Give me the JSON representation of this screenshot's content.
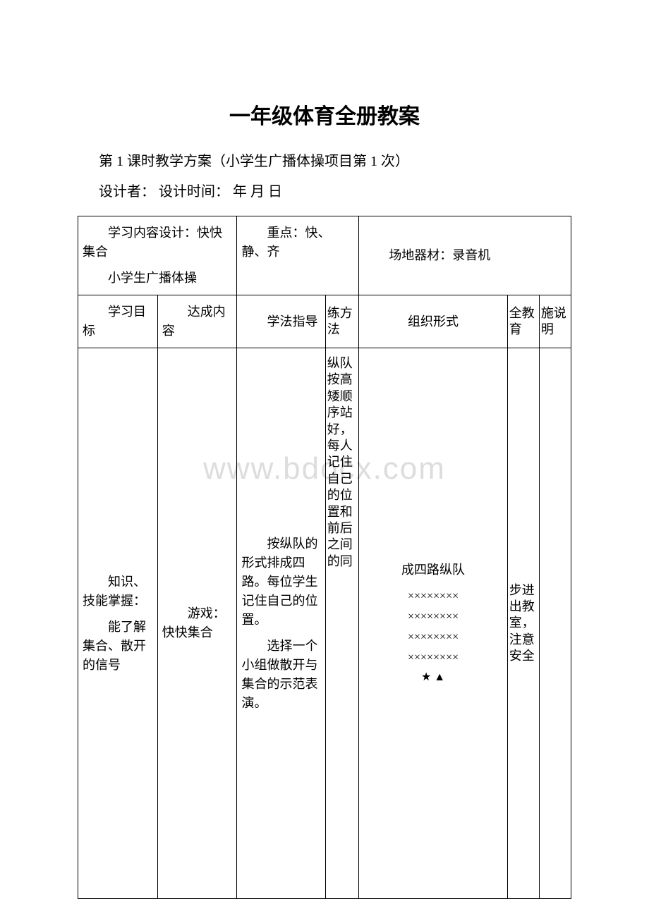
{
  "title": "一年级体育全册教案",
  "subtitle": "第 1 课时教学方案（小学生广播体操项目第 1 次）",
  "designer_line": "设计者：  设计时间：  年 月 日",
  "watermark": "www.bdocx.com",
  "row1": {
    "c1_l1": "学习内容设计：快快集合",
    "c1_l2": "小学生广播体操",
    "c2": "重点：快、静、齐",
    "c3": "场地器材：录音机"
  },
  "row2": {
    "h1": "学习目标",
    "h2": "达成内容",
    "h3": "学法指导",
    "h4": "练方法",
    "h5": "组织形式",
    "h6": "全教育",
    "h7": "施说明"
  },
  "row3": {
    "c1_p1": "知识、技能掌握：",
    "c1_p2": "能了解集合、散开的信号",
    "c2": "游戏：快快集合",
    "c3_p1": "按纵队的形式排成四路。每位学生记住自己的位置。",
    "c3_p2": "选择一个小组做散开与集合的示范表演。",
    "c4": "纵队按高矮顺序站好，每人记住自己的位置和前后之间的同",
    "c5_title": "成四路纵队",
    "c5_row": "××××××××",
    "c5_symbols": "★ ▲",
    "c6": "步进出教室，注意安全",
    "c7": ""
  },
  "colors": {
    "text": "#000000",
    "border": "#000000",
    "background": "#ffffff",
    "watermark": "#dddddd"
  }
}
